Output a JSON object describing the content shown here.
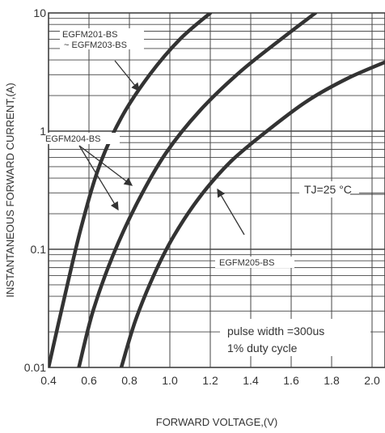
{
  "chart_data": {
    "type": "line",
    "xlabel": "FORWARD VOLTAGE,(V)",
    "ylabel": "INSTANTANEOUS FORWARD CURRENT,(A)",
    "xlim": [
      0.4,
      2.0
    ],
    "ylim": [
      0.01,
      10
    ],
    "yscale": "log",
    "grid": true,
    "x_ticks": [
      "0.4",
      "0.6",
      "0.8",
      "1.0",
      "1.2",
      "1.4",
      "1.6",
      "1.8",
      "2.0"
    ],
    "y_ticks": [
      "0.01",
      "0.1",
      "1",
      "10"
    ],
    "series": [
      {
        "name": "EGFM201-BS",
        "points": [
          [
            0.4,
            0.01
          ],
          [
            0.48,
            0.04
          ],
          [
            0.56,
            0.15
          ],
          [
            0.65,
            0.5
          ],
          [
            0.76,
            1.3
          ],
          [
            0.9,
            3.0
          ],
          [
            1.05,
            6.0
          ],
          [
            1.2,
            10.0
          ]
        ]
      },
      {
        "name": "EGFM204-BS",
        "points": [
          [
            0.55,
            0.01
          ],
          [
            0.62,
            0.03
          ],
          [
            0.72,
            0.09
          ],
          [
            0.84,
            0.25
          ],
          [
            0.98,
            0.65
          ],
          [
            1.15,
            1.5
          ],
          [
            1.35,
            3.2
          ],
          [
            1.55,
            6.0
          ],
          [
            1.72,
            10.0
          ]
        ]
      },
      {
        "name": "EGFM205-BS",
        "points": [
          [
            0.76,
            0.01
          ],
          [
            0.83,
            0.025
          ],
          [
            0.92,
            0.06
          ],
          [
            1.02,
            0.13
          ],
          [
            1.15,
            0.28
          ],
          [
            1.3,
            0.55
          ],
          [
            1.48,
            1.0
          ],
          [
            1.68,
            1.8
          ],
          [
            1.88,
            2.8
          ],
          [
            2.09,
            4.0
          ]
        ]
      }
    ]
  },
  "annotations": {
    "label_201": "EGFM201-BS",
    "label_203": "~ EGFM203-BS",
    "label_204": "EGFM204-BS",
    "label_205": "EGFM205-BS",
    "temperature": "TJ=25 °C",
    "pulse_line1": "pulse width =300us",
    "pulse_line2": "1% duty cycle"
  }
}
